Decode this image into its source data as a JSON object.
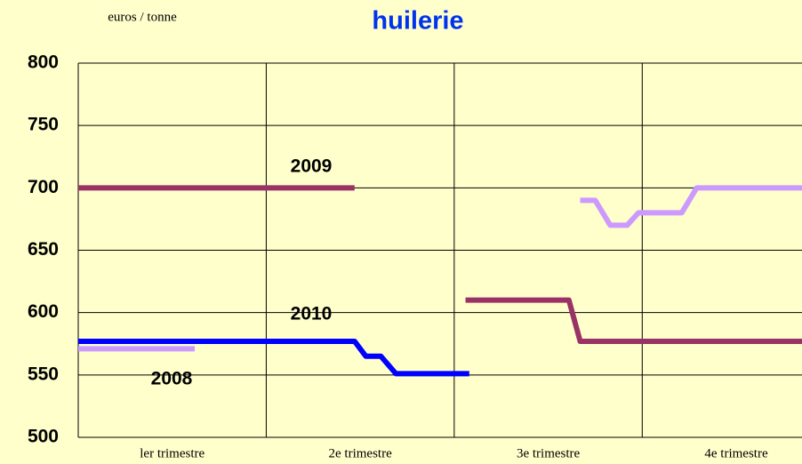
{
  "chart_data": {
    "type": "line",
    "title": "huilerie",
    "y_axis_label": "euros / tonne",
    "categories": [
      "ler trimestre",
      "2e trimestre",
      "3e trimestre",
      "4e trimestre"
    ],
    "xlim": [
      0,
      3.85
    ],
    "ylim": [
      500,
      800
    ],
    "yticks": [
      500,
      550,
      600,
      650,
      700,
      750,
      800
    ],
    "grid": true,
    "series": [
      {
        "name": "2008",
        "color": "#cc99ff",
        "x": [
          0,
          0.62,
          null,
          2.67,
          2.75,
          2.83,
          2.92,
          2.98,
          3.21,
          3.29,
          3.85
        ],
        "values": [
          571,
          571,
          null,
          690,
          690,
          670,
          670,
          680,
          680,
          700,
          700
        ]
      },
      {
        "name": "2009",
        "color": "#993366",
        "x": [
          0,
          1.47,
          null,
          2.06,
          2.61,
          2.67,
          3.85
        ],
        "values": [
          700,
          700,
          null,
          610,
          610,
          577,
          577
        ]
      },
      {
        "name": "2010",
        "color": "#0000ff",
        "x": [
          0,
          1.47,
          1.53,
          1.61,
          1.69,
          2.08
        ],
        "values": [
          577,
          577,
          565,
          565,
          551,
          551
        ]
      }
    ]
  }
}
